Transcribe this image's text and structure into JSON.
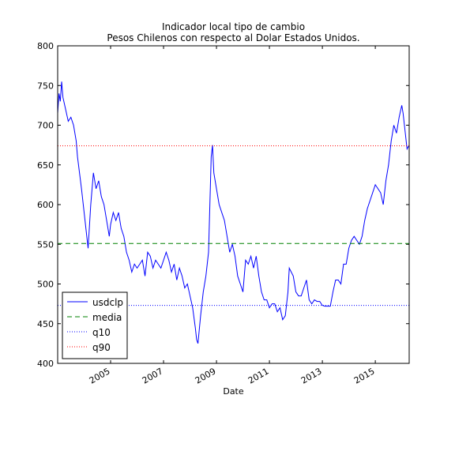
{
  "chart_data": {
    "type": "line",
    "title": "Indicador local tipo de cambio",
    "subtitle": "Pesos Chilenos con respecto al Dolar Estados Unidos.",
    "xlabel": "Date",
    "x": [
      2003.0,
      2003.05,
      2003.1,
      2003.15,
      2003.2,
      2003.3,
      2003.4,
      2003.5,
      2003.6,
      2003.7,
      2003.75,
      2003.9,
      2004.0,
      2004.1,
      2004.15,
      2004.25,
      2004.35,
      2004.45,
      2004.55,
      2004.65,
      2004.75,
      2004.85,
      2004.95,
      2005.0,
      2005.1,
      2005.2,
      2005.3,
      2005.4,
      2005.5,
      2005.6,
      2005.7,
      2005.8,
      2005.9,
      2006.0,
      2006.1,
      2006.2,
      2006.3,
      2006.4,
      2006.5,
      2006.6,
      2006.7,
      2006.8,
      2006.9,
      2007.0,
      2007.1,
      2007.2,
      2007.3,
      2007.4,
      2007.5,
      2007.6,
      2007.7,
      2007.8,
      2007.9,
      2008.0,
      2008.1,
      2008.2,
      2008.25,
      2008.3,
      2008.4,
      2008.5,
      2008.6,
      2008.7,
      2008.75,
      2008.8,
      2008.85,
      2008.9,
      2009.0,
      2009.1,
      2009.2,
      2009.3,
      2009.4,
      2009.5,
      2009.6,
      2009.7,
      2009.8,
      2009.9,
      2010.0,
      2010.1,
      2010.2,
      2010.3,
      2010.4,
      2010.5,
      2010.6,
      2010.7,
      2010.8,
      2010.9,
      2011.0,
      2011.1,
      2011.2,
      2011.3,
      2011.4,
      2011.5,
      2011.6,
      2011.7,
      2011.75,
      2011.9,
      2012.0,
      2012.1,
      2012.2,
      2012.3,
      2012.4,
      2012.5,
      2012.6,
      2012.7,
      2012.8,
      2012.9,
      2013.0,
      2013.1,
      2013.2,
      2013.3,
      2013.4,
      2013.5,
      2013.6,
      2013.7,
      2013.8,
      2013.9,
      2014.0,
      2014.1,
      2014.2,
      2014.3,
      2014.4,
      2014.5,
      2014.6,
      2014.7,
      2014.8,
      2014.9,
      2015.0,
      2015.1,
      2015.2,
      2015.3,
      2015.4,
      2015.5,
      2015.6,
      2015.7,
      2015.8,
      2015.9,
      2016.0,
      2016.05,
      2016.1,
      2016.2,
      2016.28
    ],
    "series": [
      {
        "name": "usdclp",
        "color": "#0000ff",
        "style": "solid",
        "values": [
          715,
          740,
          730,
          755,
          735,
          720,
          705,
          710,
          700,
          680,
          660,
          620,
          590,
          560,
          545,
          600,
          640,
          620,
          630,
          610,
          600,
          580,
          560,
          575,
          590,
          580,
          590,
          570,
          560,
          540,
          530,
          515,
          525,
          520,
          525,
          530,
          510,
          540,
          535,
          520,
          530,
          525,
          520,
          530,
          540,
          530,
          515,
          525,
          505,
          520,
          510,
          495,
          500,
          485,
          470,
          445,
          430,
          425,
          460,
          490,
          510,
          540,
          600,
          660,
          675,
          640,
          620,
          600,
          590,
          580,
          560,
          540,
          550,
          535,
          510,
          500,
          490,
          530,
          525,
          535,
          520,
          535,
          510,
          490,
          480,
          480,
          470,
          475,
          475,
          465,
          470,
          455,
          460,
          490,
          520,
          510,
          490,
          485,
          485,
          495,
          505,
          480,
          475,
          480,
          478,
          478,
          473,
          472,
          472,
          472,
          490,
          505,
          505,
          500,
          525,
          525,
          545,
          555,
          560,
          555,
          550,
          560,
          580,
          595,
          605,
          615,
          625,
          620,
          615,
          600,
          630,
          650,
          680,
          700,
          690,
          710,
          725,
          715,
          700,
          670,
          675
        ]
      },
      {
        "name": "media",
        "color": "#008000",
        "style": "dashed",
        "value": 551
      },
      {
        "name": "q10",
        "color": "#0000ff",
        "style": "dotted",
        "value": 473
      },
      {
        "name": "q90",
        "color": "#ff0000",
        "style": "dotted",
        "value": 674
      }
    ],
    "xlim": [
      2003.0,
      2016.28
    ],
    "xticks": [
      2005,
      2007,
      2009,
      2011,
      2013,
      2015
    ],
    "ylim": [
      400,
      800
    ],
    "yticks": [
      400,
      450,
      500,
      550,
      600,
      650,
      700,
      750,
      800
    ],
    "legend": "lower left"
  }
}
